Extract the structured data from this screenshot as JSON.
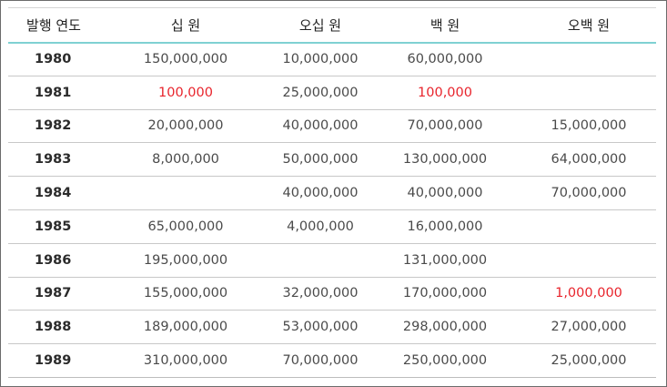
{
  "headers": [
    "발행 연도",
    "십 원",
    "오십 원",
    "백 원",
    "오백 원"
  ],
  "rows": [
    {
      "year": "1980",
      "cells": [
        "150,000,000",
        "10,000,000",
        "60,000,000",
        ""
      ]
    },
    {
      "year": "1981",
      "cells": [
        "100,000",
        "25,000,000",
        "100,000",
        ""
      ]
    },
    {
      "year": "1982",
      "cells": [
        "20,000,000",
        "40,000,000",
        "70,000,000",
        "15,000,000"
      ]
    },
    {
      "year": "1983",
      "cells": [
        "8,000,000",
        "50,000,000",
        "130,000,000",
        "64,000,000"
      ]
    },
    {
      "year": "1984",
      "cells": [
        "",
        "40,000,000",
        "40,000,000",
        "70,000,000"
      ]
    },
    {
      "year": "1985",
      "cells": [
        "65,000,000",
        "4,000,000",
        "16,000,000",
        ""
      ]
    },
    {
      "year": "1986",
      "cells": [
        "195,000,000",
        "",
        "131,000,000",
        ""
      ]
    },
    {
      "year": "1987",
      "cells": [
        "155,000,000",
        "32,000,000",
        "170,000,000",
        "1,000,000"
      ]
    },
    {
      "year": "1988",
      "cells": [
        "189,000,000",
        "53,000,000",
        "298,000,000",
        "27,000,000"
      ]
    },
    {
      "year": "1989",
      "cells": [
        "310,000,000",
        "70,000,000",
        "250,000,000",
        "25,000,000"
      ]
    }
  ],
  "highlight_color": "#e8242c",
  "accent_color": "#7fd1d3"
}
